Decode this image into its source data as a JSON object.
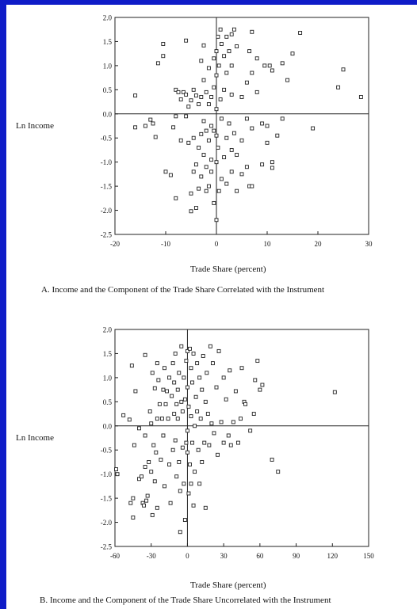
{
  "chart_data": [
    {
      "type": "scatter",
      "caption": "A. Income and the Component of the Trade Share Correlated with the Instrument",
      "xlabel": "Trade Share (percent)",
      "ylabel": "Ln Income",
      "xlim": [
        -20,
        30
      ],
      "ylim": [
        -2.5,
        2.0
      ],
      "xticks": [
        "-20",
        "-10",
        "0",
        "10",
        "20",
        "30"
      ],
      "yticks": [
        "2.0",
        "1.5",
        "1.0",
        "0.5",
        "0.0",
        "-0.5",
        "-1.0",
        "-1.5",
        "-2.0",
        "-2.5"
      ],
      "points": [
        [
          -16,
          0.38
        ],
        [
          -16,
          -0.28
        ],
        [
          -14,
          -0.25
        ],
        [
          -13,
          -0.12
        ],
        [
          -12.5,
          -0.2
        ],
        [
          -12,
          -0.48
        ],
        [
          -11.5,
          1.05
        ],
        [
          -10.5,
          1.2
        ],
        [
          -10.5,
          1.45
        ],
        [
          -10,
          -1.2
        ],
        [
          -9,
          -1.27
        ],
        [
          -8.5,
          -0.28
        ],
        [
          -8,
          0.5
        ],
        [
          -8,
          -0.05
        ],
        [
          -8,
          -1.75
        ],
        [
          -7.5,
          0.45
        ],
        [
          -7,
          0.3
        ],
        [
          -7,
          -0.55
        ],
        [
          -6.5,
          0.45
        ],
        [
          -6,
          1.52
        ],
        [
          -6,
          0.4
        ],
        [
          -6,
          -0.05
        ],
        [
          -5.5,
          0.15
        ],
        [
          -5.5,
          -0.6
        ],
        [
          -5,
          0.28
        ],
        [
          -5,
          -1.65
        ],
        [
          -5,
          -2.02
        ],
        [
          -4.5,
          0.5
        ],
        [
          -4.5,
          -0.5
        ],
        [
          -4.5,
          -1.2
        ],
        [
          -4,
          0.38
        ],
        [
          -4,
          -1.05
        ],
        [
          -4,
          -1.95
        ],
        [
          -3.5,
          0.2
        ],
        [
          -3.5,
          -0.7
        ],
        [
          -3.5,
          -1.55
        ],
        [
          -3,
          1.1
        ],
        [
          -3,
          0.35
        ],
        [
          -3,
          -0.42
        ],
        [
          -3,
          -1.3
        ],
        [
          -2.5,
          1.42
        ],
        [
          -2.5,
          0.7
        ],
        [
          -2.5,
          -0.15
        ],
        [
          -2.5,
          -0.85
        ],
        [
          -2,
          0.45
        ],
        [
          -2,
          -0.35
        ],
        [
          -2,
          -1.1
        ],
        [
          -2,
          -1.6
        ],
        [
          -1.5,
          0.95
        ],
        [
          -1.5,
          0.2
        ],
        [
          -1.5,
          -0.55
        ],
        [
          -1.5,
          -1.5
        ],
        [
          -1,
          0.35
        ],
        [
          -1,
          -0.25
        ],
        [
          -1,
          -0.95
        ],
        [
          -1,
          -1.2
        ],
        [
          -0.5,
          1.15
        ],
        [
          -0.5,
          0.55
        ],
        [
          -0.5,
          -0.35
        ],
        [
          -0.5,
          -1.85
        ],
        [
          0,
          1.3
        ],
        [
          0,
          0.8
        ],
        [
          0,
          0.1
        ],
        [
          0,
          -0.45
        ],
        [
          0,
          -1.0
        ],
        [
          0,
          -2.2
        ],
        [
          0.3,
          1.6
        ],
        [
          0.3,
          -0.7
        ],
        [
          0.5,
          1.0
        ],
        [
          0.5,
          -1.6
        ],
        [
          0.8,
          1.75
        ],
        [
          0.8,
          0.3
        ],
        [
          1,
          1.45
        ],
        [
          1,
          -0.1
        ],
        [
          1,
          -1.35
        ],
        [
          1.5,
          1.2
        ],
        [
          1.5,
          0.5
        ],
        [
          1.5,
          -0.9
        ],
        [
          2,
          1.6
        ],
        [
          2,
          0.85
        ],
        [
          2,
          -0.5
        ],
        [
          2,
          -1.45
        ],
        [
          2.5,
          1.3
        ],
        [
          2.5,
          -0.2
        ],
        [
          3,
          1.65
        ],
        [
          3,
          1.0
        ],
        [
          3,
          0.4
        ],
        [
          3,
          -0.75
        ],
        [
          3,
          -1.2
        ],
        [
          3.5,
          1.75
        ],
        [
          3.5,
          -0.4
        ],
        [
          4,
          1.4
        ],
        [
          4,
          -0.85
        ],
        [
          4,
          -1.6
        ],
        [
          5,
          0.35
        ],
        [
          5,
          -0.55
        ],
        [
          5,
          -1.25
        ],
        [
          6,
          0.65
        ],
        [
          6,
          -0.1
        ],
        [
          6,
          -1.1
        ],
        [
          6.5,
          1.3
        ],
        [
          6.5,
          -1.5
        ],
        [
          7,
          1.7
        ],
        [
          7,
          0.85
        ],
        [
          7,
          -0.3
        ],
        [
          7,
          -1.5
        ],
        [
          8,
          1.15
        ],
        [
          8,
          0.45
        ],
        [
          9,
          -0.2
        ],
        [
          9,
          -1.05
        ],
        [
          9.5,
          1.0
        ],
        [
          10,
          -0.25
        ],
        [
          10,
          -0.6
        ],
        [
          10.5,
          1.0
        ],
        [
          11,
          0.9
        ],
        [
          11,
          -1.0
        ],
        [
          11,
          -1.12
        ],
        [
          12,
          -0.45
        ],
        [
          13,
          1.05
        ],
        [
          13,
          -0.1
        ],
        [
          14,
          0.7
        ],
        [
          15,
          1.25
        ],
        [
          16.5,
          1.68
        ],
        [
          19,
          -0.3
        ],
        [
          24,
          0.55
        ],
        [
          25,
          0.92
        ],
        [
          28.5,
          0.35
        ]
      ]
    },
    {
      "type": "scatter",
      "caption": "B. Income and the Component of the Trade Share Uncorrelated with the Instrument",
      "xlabel": "Trade Share (percent)",
      "ylabel": "Ln Income",
      "xlim": [
        -60,
        150
      ],
      "ylim": [
        -2.5,
        2.0
      ],
      "xticks": [
        "-60",
        "-30",
        "0",
        "30",
        "60",
        "90",
        "120",
        "150"
      ],
      "yticks": [
        "2.0",
        "1.5",
        "1.0",
        "0.5",
        "0.0",
        "-0.5",
        "-1.0",
        "-1.5",
        "-2.0",
        "-2.5"
      ],
      "points": [
        [
          -59,
          -0.9
        ],
        [
          -58,
          -1.0
        ],
        [
          -53,
          0.22
        ],
        [
          -48,
          0.13
        ],
        [
          -47,
          -1.6
        ],
        [
          -46,
          1.25
        ],
        [
          -45,
          -1.5
        ],
        [
          -45,
          -1.9
        ],
        [
          -44,
          -0.4
        ],
        [
          -43,
          0.72
        ],
        [
          -40,
          -0.05
        ],
        [
          -40,
          -1.1
        ],
        [
          -38,
          -1.05
        ],
        [
          -37,
          -1.6
        ],
        [
          -36,
          -1.65
        ],
        [
          -35,
          1.47
        ],
        [
          -35,
          -0.2
        ],
        [
          -35,
          -0.85
        ],
        [
          -34,
          -1.55
        ],
        [
          -33,
          -1.45
        ],
        [
          -32,
          -0.75
        ],
        [
          -31,
          0.3
        ],
        [
          -30,
          0.05
        ],
        [
          -30,
          -0.95
        ],
        [
          -29,
          1.1
        ],
        [
          -29,
          -1.85
        ],
        [
          -28,
          -0.4
        ],
        [
          -27,
          0.78
        ],
        [
          -27,
          -1.15
        ],
        [
          -26,
          -0.55
        ],
        [
          -25,
          1.3
        ],
        [
          -25,
          0.15
        ],
        [
          -25,
          -1.7
        ],
        [
          -24,
          0.95
        ],
        [
          -23,
          0.45
        ],
        [
          -22,
          -0.7
        ],
        [
          -21,
          0.15
        ],
        [
          -20,
          0.75
        ],
        [
          -20,
          -0.2
        ],
        [
          -19,
          1.2
        ],
        [
          -19,
          -1.25
        ],
        [
          -18,
          0.45
        ],
        [
          -17,
          0.72
        ],
        [
          -16,
          0.15
        ],
        [
          -15,
          1.0
        ],
        [
          -15,
          -0.8
        ],
        [
          -14,
          -1.6
        ],
        [
          -13,
          0.62
        ],
        [
          -12,
          1.3
        ],
        [
          -12,
          -0.5
        ],
        [
          -11,
          0.9
        ],
        [
          -11,
          0.25
        ],
        [
          -10,
          1.5
        ],
        [
          -10,
          -0.3
        ],
        [
          -9,
          0.45
        ],
        [
          -9,
          -1.05
        ],
        [
          -8,
          0.75
        ],
        [
          -8,
          0.15
        ],
        [
          -7,
          1.1
        ],
        [
          -7,
          -0.75
        ],
        [
          -6,
          -1.35
        ],
        [
          -6,
          -2.2
        ],
        [
          -5,
          1.65
        ],
        [
          -5,
          0.5
        ],
        [
          -4,
          0.3
        ],
        [
          -4,
          -0.45
        ],
        [
          -3,
          1.0
        ],
        [
          -3,
          -1.2
        ],
        [
          -2,
          0.55
        ],
        [
          -2,
          -1.95
        ],
        [
          -1,
          1.35
        ],
        [
          -1,
          -0.35
        ],
        [
          0,
          1.55
        ],
        [
          0,
          0.8
        ],
        [
          0,
          -0.1
        ],
        [
          0,
          -0.55
        ],
        [
          1,
          0.4
        ],
        [
          1,
          -1.4
        ],
        [
          2,
          1.6
        ],
        [
          2,
          -0.8
        ],
        [
          3,
          1.2
        ],
        [
          3,
          0.2
        ],
        [
          3,
          -1.2
        ],
        [
          4,
          0.9
        ],
        [
          4,
          -0.35
        ],
        [
          5,
          1.5
        ],
        [
          5,
          -1.65
        ],
        [
          6,
          0.0
        ],
        [
          6,
          -0.95
        ],
        [
          7,
          0.6
        ],
        [
          8,
          1.3
        ],
        [
          8,
          0.3
        ],
        [
          9,
          -0.5
        ],
        [
          10,
          1.0
        ],
        [
          10,
          -1.2
        ],
        [
          11,
          0.15
        ],
        [
          12,
          0.75
        ],
        [
          12,
          -0.75
        ],
        [
          13,
          1.45
        ],
        [
          14,
          -0.35
        ],
        [
          15,
          0.5
        ],
        [
          15,
          -1.7
        ],
        [
          16,
          1.1
        ],
        [
          17,
          0.25
        ],
        [
          18,
          -0.4
        ],
        [
          19,
          1.65
        ],
        [
          20,
          0.05
        ],
        [
          21,
          1.3
        ],
        [
          22,
          -0.15
        ],
        [
          24,
          0.8
        ],
        [
          25,
          -0.6
        ],
        [
          26,
          1.55
        ],
        [
          28,
          0.08
        ],
        [
          30,
          1.0
        ],
        [
          30,
          -0.35
        ],
        [
          32,
          0.55
        ],
        [
          34,
          -0.2
        ],
        [
          35,
          1.15
        ],
        [
          36,
          -0.4
        ],
        [
          38,
          0.08
        ],
        [
          40,
          0.72
        ],
        [
          42,
          -0.35
        ],
        [
          44,
          0.15
        ],
        [
          45,
          1.2
        ],
        [
          47,
          0.5
        ],
        [
          48,
          0.45
        ],
        [
          52,
          -0.1
        ],
        [
          55,
          0.25
        ],
        [
          56,
          0.95
        ],
        [
          58,
          1.35
        ],
        [
          60,
          0.75
        ],
        [
          62,
          0.85
        ],
        [
          70,
          -0.7
        ],
        [
          75,
          -0.95
        ],
        [
          122,
          0.7
        ]
      ]
    }
  ]
}
